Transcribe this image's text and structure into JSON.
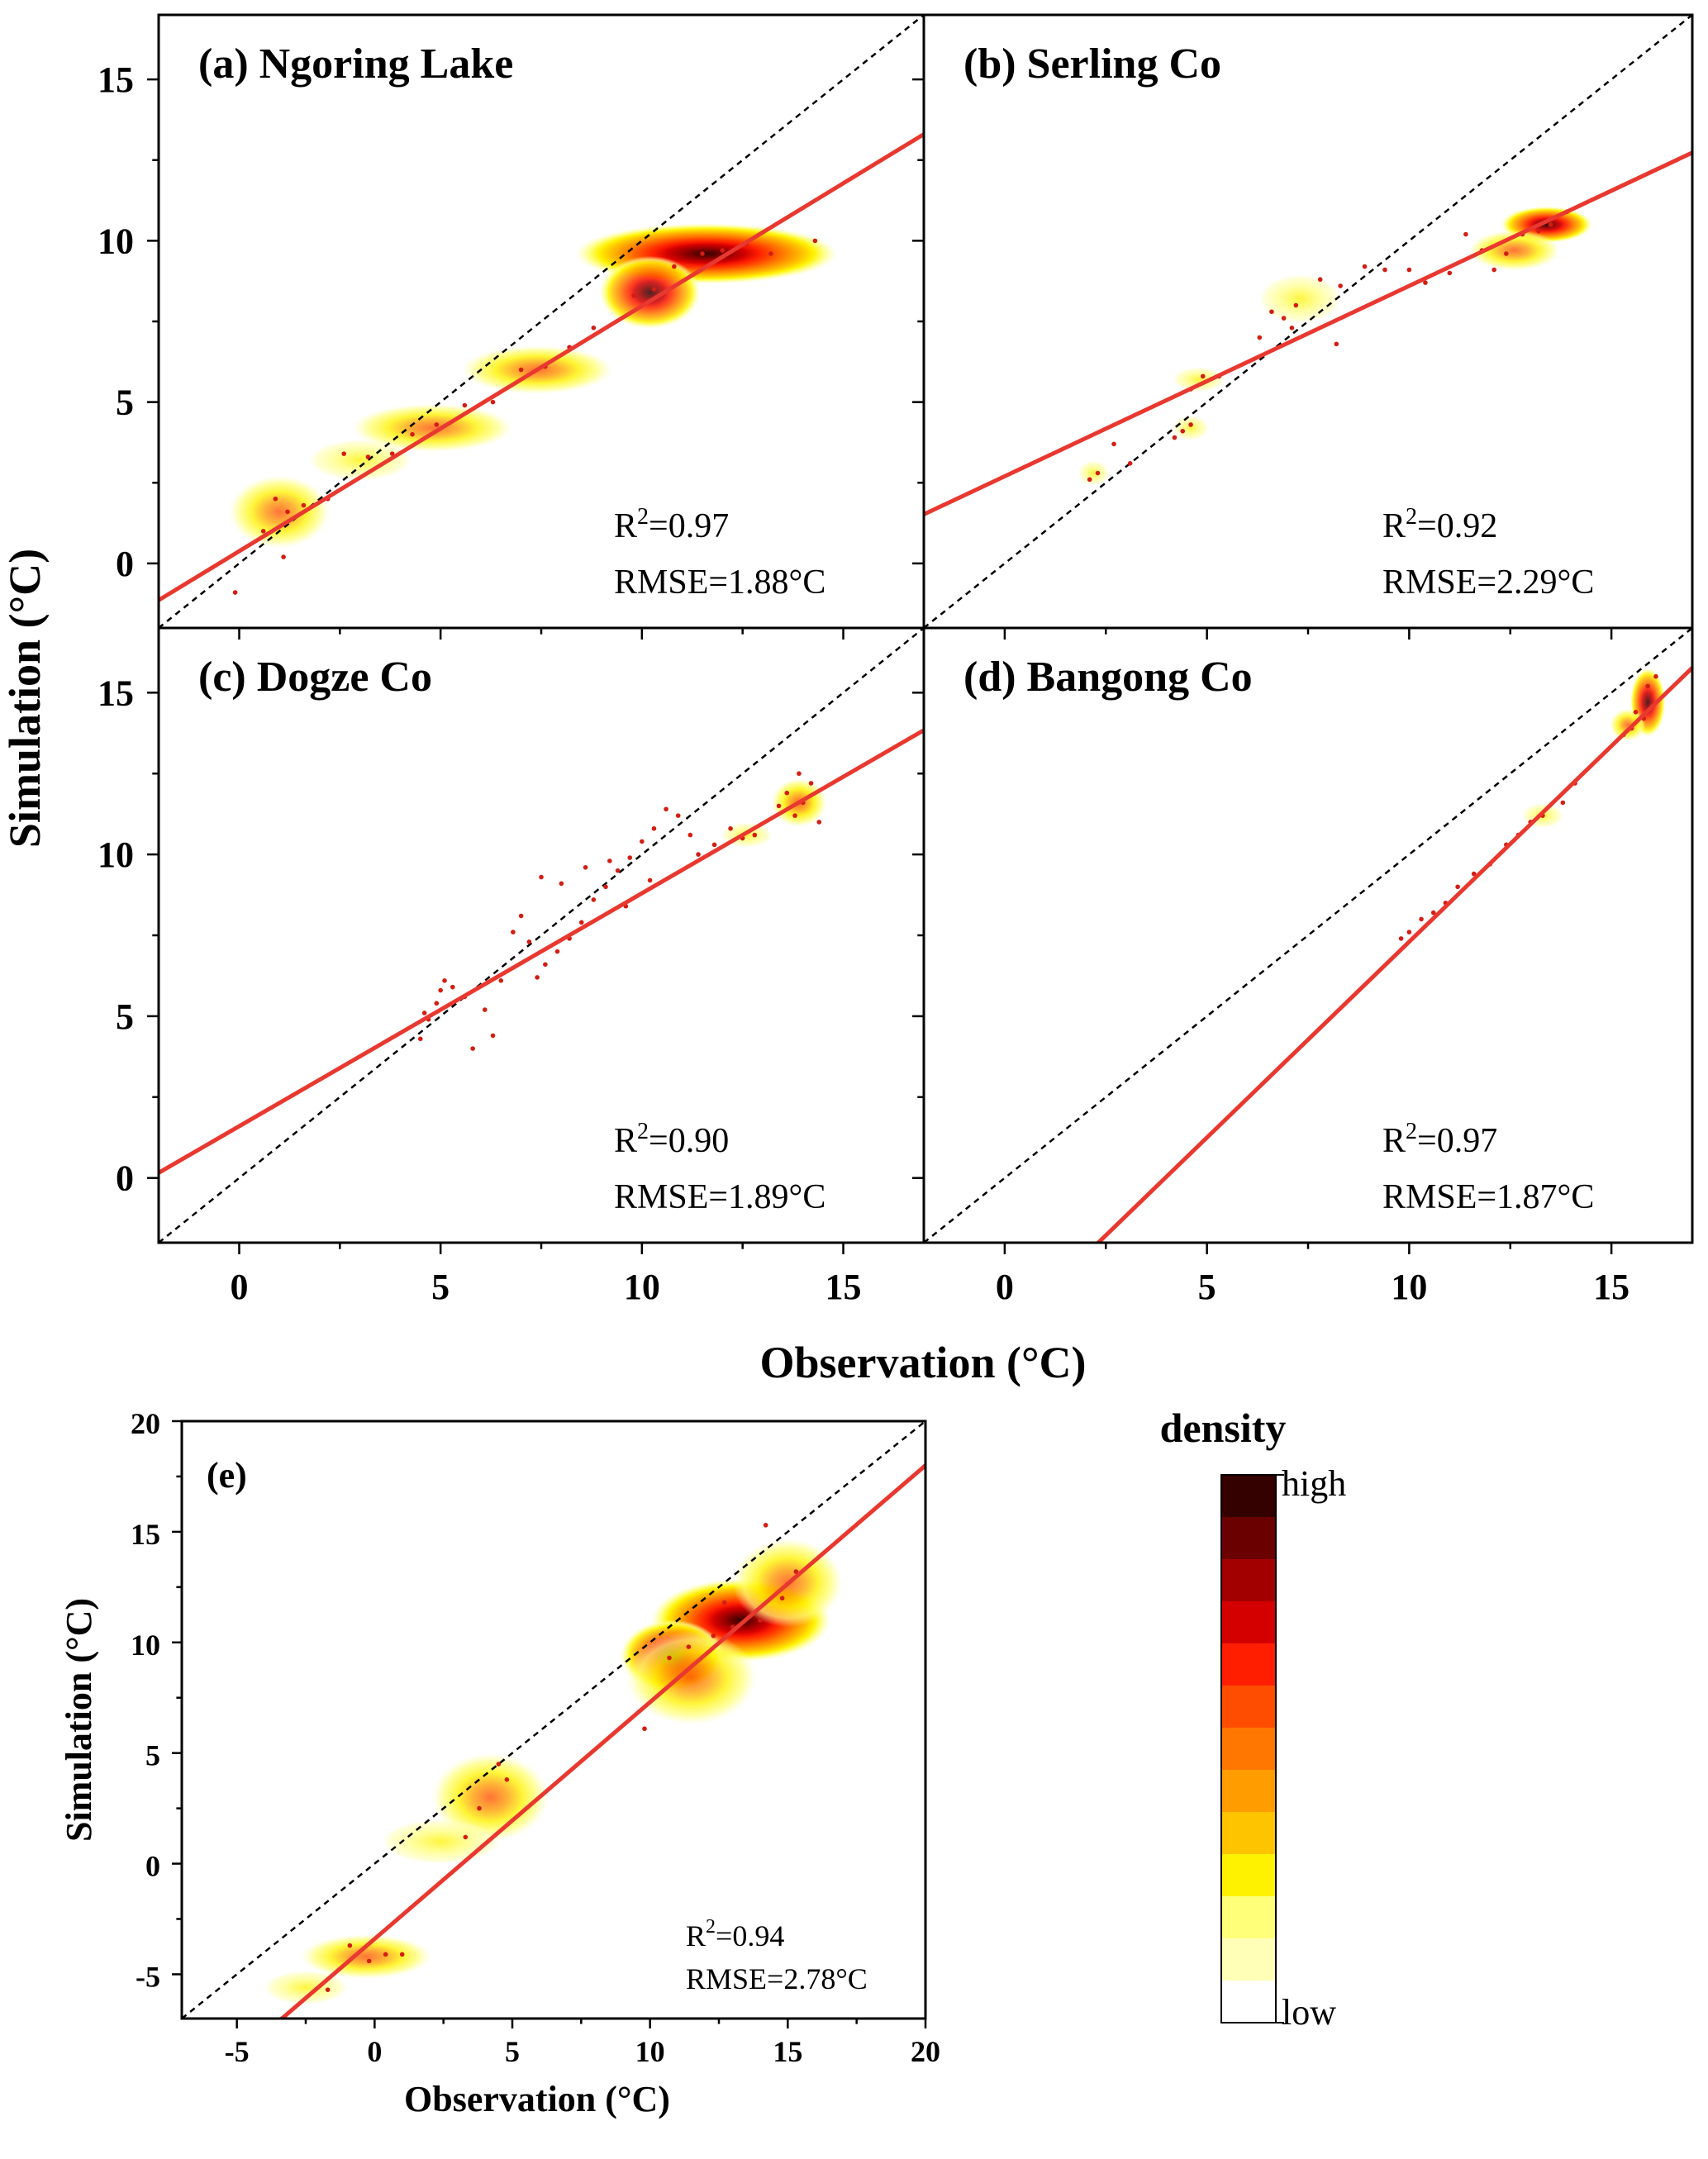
{
  "colors": {
    "fit_line": "#e8382f",
    "one_to_one": "#000000",
    "point": "#d21e14",
    "density_ramp": [
      "#ffffff",
      "#ffffb8",
      "#ffff7a",
      "#fff200",
      "#ffc400",
      "#ff9d00",
      "#ff7700",
      "#ff4d00",
      "#ff1e00",
      "#d40000",
      "#a20000",
      "#6a0000",
      "#350000"
    ]
  },
  "figure": {
    "shared_xlabel": "Observation (°C)",
    "shared_ylabel": "Simulation (°C)"
  },
  "legend": {
    "title": "density",
    "high_label": "high",
    "low_label": "low"
  },
  "chart_data": [
    {
      "id": "a",
      "type": "scatter",
      "title": "(a) Ngoring Lake",
      "xlim": [
        -2,
        17
      ],
      "ylim": [
        -2,
        17
      ],
      "xticks": [
        0,
        5,
        10,
        15
      ],
      "yticks": [
        0,
        5,
        10,
        15
      ],
      "show_xtick_labels": false,
      "show_ytick_labels": true,
      "r2_prefix": "R",
      "r2_sup": "2",
      "r2_value": "=0.97",
      "rmse": "RMSE=1.88°C",
      "fit": {
        "slope": 0.76,
        "intercept": 0.38
      },
      "density": [
        {
          "x": 11.6,
          "y": 9.6,
          "rx": 2.6,
          "ry": 0.75,
          "w": 1.0
        },
        {
          "x": 10.2,
          "y": 8.4,
          "rx": 1.0,
          "ry": 0.9,
          "w": 0.55
        },
        {
          "x": 7.4,
          "y": 6.0,
          "rx": 1.5,
          "ry": 0.6,
          "w": 0.35
        },
        {
          "x": 4.8,
          "y": 4.2,
          "rx": 1.6,
          "ry": 0.6,
          "w": 0.28
        },
        {
          "x": 3.0,
          "y": 3.2,
          "rx": 1.0,
          "ry": 0.5,
          "w": 0.22
        },
        {
          "x": 1.0,
          "y": 1.6,
          "rx": 1.0,
          "ry": 0.9,
          "w": 0.25
        }
      ],
      "points": [
        [
          12.0,
          9.7
        ],
        [
          11.5,
          9.6
        ],
        [
          12.6,
          9.9
        ],
        [
          13.2,
          9.6
        ],
        [
          10.8,
          9.2
        ],
        [
          10.3,
          8.5
        ],
        [
          9.8,
          8.3
        ],
        [
          8.8,
          7.3
        ],
        [
          8.2,
          6.7
        ],
        [
          7.6,
          6.1
        ],
        [
          7.0,
          6.0
        ],
        [
          6.3,
          5.0
        ],
        [
          5.6,
          4.9
        ],
        [
          4.9,
          4.3
        ],
        [
          4.3,
          4.0
        ],
        [
          3.8,
          3.4
        ],
        [
          3.2,
          3.3
        ],
        [
          2.6,
          3.4
        ],
        [
          2.2,
          2.0
        ],
        [
          1.6,
          1.8
        ],
        [
          1.2,
          1.6
        ],
        [
          0.9,
          2.0
        ],
        [
          1.1,
          0.2
        ],
        [
          0.6,
          1.0
        ],
        [
          -0.1,
          -0.9
        ],
        [
          14.3,
          10.0
        ]
      ]
    },
    {
      "id": "b",
      "type": "scatter",
      "title": "(b) Serling Co",
      "xlim": [
        -2,
        17
      ],
      "ylim": [
        -2,
        17
      ],
      "xticks": [
        0,
        5,
        10,
        15
      ],
      "yticks": [
        0,
        5,
        10,
        15
      ],
      "show_xtick_labels": false,
      "show_ytick_labels": false,
      "r2_prefix": "R",
      "r2_sup": "2",
      "r2_value": "=0.92",
      "rmse": "RMSE=2.29°C",
      "fit": {
        "slope": 0.59,
        "intercept": 2.7
      },
      "density": [
        {
          "x": 13.4,
          "y": 10.5,
          "rx": 0.9,
          "ry": 0.45,
          "w": 0.85
        },
        {
          "x": 12.6,
          "y": 9.7,
          "rx": 0.9,
          "ry": 0.5,
          "w": 0.3
        },
        {
          "x": 7.3,
          "y": 8.2,
          "rx": 0.8,
          "ry": 0.6,
          "w": 0.15
        },
        {
          "x": 4.8,
          "y": 5.7,
          "rx": 0.5,
          "ry": 0.3,
          "w": 0.2
        },
        {
          "x": 4.6,
          "y": 4.2,
          "rx": 0.35,
          "ry": 0.3,
          "w": 0.12
        },
        {
          "x": 2.2,
          "y": 2.8,
          "rx": 0.3,
          "ry": 0.3,
          "w": 0.12
        }
      ],
      "points": [
        [
          13.5,
          10.5
        ],
        [
          13.2,
          10.3
        ],
        [
          13.9,
          10.9
        ],
        [
          12.8,
          10.2
        ],
        [
          12.4,
          9.6
        ],
        [
          12.1,
          9.1
        ],
        [
          11.8,
          9.7
        ],
        [
          11.4,
          10.2
        ],
        [
          11.0,
          9.0
        ],
        [
          10.4,
          8.7
        ],
        [
          10.0,
          9.1
        ],
        [
          9.4,
          9.1
        ],
        [
          8.9,
          9.2
        ],
        [
          8.3,
          8.6
        ],
        [
          7.8,
          8.8
        ],
        [
          7.2,
          8.0
        ],
        [
          6.9,
          7.6
        ],
        [
          6.6,
          7.8
        ],
        [
          8.2,
          6.8
        ],
        [
          7.1,
          7.3
        ],
        [
          6.3,
          7.0
        ],
        [
          5.3,
          5.8
        ],
        [
          4.9,
          5.8
        ],
        [
          4.6,
          5.4
        ],
        [
          4.6,
          4.3
        ],
        [
          4.4,
          4.1
        ],
        [
          4.2,
          3.9
        ],
        [
          3.1,
          3.1
        ],
        [
          2.7,
          3.7
        ],
        [
          2.3,
          2.8
        ],
        [
          2.1,
          2.6
        ]
      ]
    },
    {
      "id": "c",
      "type": "scatter",
      "title": "(c) Dogze Co",
      "xlim": [
        -2,
        17
      ],
      "ylim": [
        -2,
        17
      ],
      "xticks": [
        0,
        5,
        10,
        15
      ],
      "yticks": [
        0,
        5,
        10,
        15
      ],
      "show_xtick_labels": true,
      "show_ytick_labels": true,
      "r2_prefix": "R",
      "r2_sup": "2",
      "r2_value": "=0.90",
      "rmse": "RMSE=1.89°C",
      "fit": {
        "slope": 0.72,
        "intercept": 1.6
      },
      "density": [
        {
          "x": 13.9,
          "y": 11.6,
          "rx": 0.55,
          "ry": 0.6,
          "w": 0.45
        },
        {
          "x": 12.6,
          "y": 10.6,
          "rx": 0.5,
          "ry": 0.3,
          "w": 0.15
        }
      ],
      "points": [
        [
          14.0,
          11.6
        ],
        [
          13.8,
          11.2
        ],
        [
          13.6,
          11.9
        ],
        [
          14.2,
          12.2
        ],
        [
          13.4,
          11.5
        ],
        [
          14.4,
          11.0
        ],
        [
          13.9,
          12.5
        ],
        [
          12.8,
          10.6
        ],
        [
          12.5,
          10.5
        ],
        [
          12.2,
          10.8
        ],
        [
          11.8,
          10.3
        ],
        [
          11.4,
          10.0
        ],
        [
          11.2,
          10.6
        ],
        [
          10.9,
          11.2
        ],
        [
          10.6,
          11.4
        ],
        [
          10.3,
          10.8
        ],
        [
          10.0,
          10.4
        ],
        [
          9.7,
          9.9
        ],
        [
          9.4,
          9.5
        ],
        [
          9.1,
          9.0
        ],
        [
          8.8,
          8.6
        ],
        [
          8.5,
          7.9
        ],
        [
          8.2,
          7.4
        ],
        [
          7.9,
          7.0
        ],
        [
          7.6,
          6.6
        ],
        [
          7.4,
          6.2
        ],
        [
          7.2,
          7.3
        ],
        [
          7.0,
          8.1
        ],
        [
          6.8,
          7.6
        ],
        [
          7.5,
          9.3
        ],
        [
          8.0,
          9.1
        ],
        [
          8.6,
          9.6
        ],
        [
          9.2,
          9.8
        ],
        [
          6.5,
          6.1
        ],
        [
          6.3,
          4.4
        ],
        [
          6.1,
          5.2
        ],
        [
          5.8,
          4.0
        ],
        [
          5.6,
          5.6
        ],
        [
          5.3,
          5.9
        ],
        [
          5.1,
          6.1
        ],
        [
          4.9,
          5.4
        ],
        [
          4.7,
          4.9
        ],
        [
          4.5,
          4.3
        ],
        [
          4.6,
          5.1
        ],
        [
          5.0,
          5.8
        ],
        [
          9.6,
          8.4
        ],
        [
          10.2,
          9.2
        ]
      ]
    },
    {
      "id": "d",
      "type": "scatter",
      "title": "(d) Bangong Co",
      "xlim": [
        -2,
        17
      ],
      "ylim": [
        -2,
        17
      ],
      "xticks": [
        0,
        5,
        10,
        15
      ],
      "yticks": [
        0,
        5,
        10,
        15
      ],
      "show_xtick_labels": true,
      "show_ytick_labels": false,
      "r2_prefix": "R",
      "r2_sup": "2",
      "r2_value": "=0.97",
      "rmse": "RMSE=1.87°C",
      "fit": {
        "slope": 1.21,
        "intercept": -4.8
      },
      "density": [
        {
          "x": 15.9,
          "y": 14.7,
          "rx": 0.35,
          "ry": 0.85,
          "w": 0.6
        },
        {
          "x": 15.4,
          "y": 14.0,
          "rx": 0.35,
          "ry": 0.4,
          "w": 0.3
        },
        {
          "x": 13.3,
          "y": 11.2,
          "rx": 0.4,
          "ry": 0.3,
          "w": 0.12
        }
      ],
      "points": [
        [
          15.9,
          15.2
        ],
        [
          16.0,
          14.6
        ],
        [
          15.8,
          14.2
        ],
        [
          16.1,
          15.5
        ],
        [
          15.6,
          14.4
        ],
        [
          15.5,
          13.9
        ],
        [
          15.3,
          13.7
        ],
        [
          14.1,
          12.2
        ],
        [
          13.8,
          11.6
        ],
        [
          13.3,
          11.2
        ],
        [
          13.0,
          11.0
        ],
        [
          12.7,
          10.6
        ],
        [
          12.4,
          10.3
        ],
        [
          12.0,
          9.7
        ],
        [
          11.6,
          9.4
        ],
        [
          11.2,
          9.0
        ],
        [
          10.9,
          8.5
        ],
        [
          10.6,
          8.2
        ],
        [
          10.3,
          8.0
        ],
        [
          10.0,
          7.6
        ],
        [
          9.8,
          7.4
        ]
      ]
    },
    {
      "id": "e",
      "type": "scatter",
      "title": "(e)",
      "xlabel": "Observation (°C)",
      "ylabel": "Simulation (°C)",
      "xlim": [
        -7,
        20
      ],
      "ylim": [
        -7,
        20
      ],
      "xticks": [
        -5,
        0,
        5,
        10,
        15,
        20
      ],
      "yticks": [
        -5,
        0,
        5,
        10,
        15,
        20
      ],
      "show_xtick_labels": true,
      "show_ytick_labels": true,
      "r2_prefix": "R",
      "r2_sup": "2",
      "r2_value": "=0.94",
      "rmse": "RMSE=2.78°C",
      "fit": {
        "slope": 1.07,
        "intercept": -3.4
      },
      "density": [
        {
          "x": 13.3,
          "y": 11.0,
          "rx": 2.6,
          "ry": 1.5,
          "w": 1.0
        },
        {
          "x": 10.8,
          "y": 9.4,
          "rx": 1.5,
          "ry": 1.3,
          "w": 0.65
        },
        {
          "x": 15.0,
          "y": 12.7,
          "rx": 1.6,
          "ry": 1.6,
          "w": 0.3
        },
        {
          "x": 11.5,
          "y": 8.4,
          "rx": 1.9,
          "ry": 1.7,
          "w": 0.25
        },
        {
          "x": 4.2,
          "y": 3.0,
          "rx": 1.7,
          "ry": 1.6,
          "w": 0.28
        },
        {
          "x": 2.4,
          "y": 1.0,
          "rx": 1.7,
          "ry": 0.8,
          "w": 0.18
        },
        {
          "x": -0.3,
          "y": -4.2,
          "rx": 1.9,
          "ry": 0.8,
          "w": 0.3
        },
        {
          "x": -2.5,
          "y": -5.6,
          "rx": 1.2,
          "ry": 0.6,
          "w": 0.18
        }
      ],
      "points": [
        [
          14.0,
          11.0
        ],
        [
          13.0,
          10.7
        ],
        [
          12.3,
          10.3
        ],
        [
          11.4,
          9.8
        ],
        [
          10.7,
          9.3
        ],
        [
          14.8,
          12.0
        ],
        [
          15.3,
          13.2
        ],
        [
          12.7,
          11.8
        ],
        [
          14.2,
          15.3
        ],
        [
          9.8,
          6.1
        ],
        [
          4.5,
          4.5
        ],
        [
          3.8,
          2.5
        ],
        [
          4.8,
          3.8
        ],
        [
          3.3,
          1.2
        ],
        [
          0.4,
          -4.1
        ],
        [
          -0.9,
          -3.7
        ],
        [
          -1.7,
          -5.7
        ],
        [
          -0.2,
          -4.4
        ],
        [
          1.0,
          -4.1
        ]
      ]
    }
  ]
}
